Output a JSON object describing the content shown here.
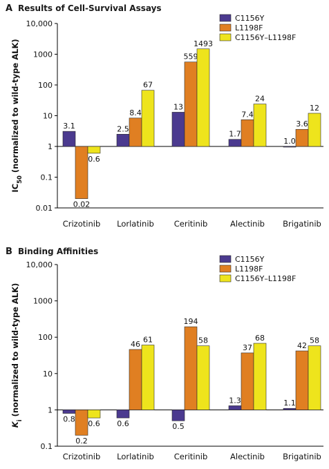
{
  "colors": {
    "C1156Y": "#4b3a8f",
    "L1198F": "#e07f22",
    "C1156Y-L1198F": "#eee41c"
  },
  "chart_data": [
    {
      "panel": "A",
      "title": "Results of Cell-Survival Assays",
      "type": "bar",
      "scale": "log",
      "ylabel_pre": "IC",
      "ylabel_sub": "50",
      "ylabel_post": " (normalized to wild-type ALK)",
      "ylim": [
        0.01,
        10000
      ],
      "yticks": [
        "10,000",
        "1000",
        "100",
        "10",
        "1",
        "0.1",
        "0.01"
      ],
      "legend_position": "top-right",
      "categories": [
        "Crizotinib",
        "Lorlatinib",
        "Ceritinib",
        "Alectinib",
        "Brigatinib"
      ],
      "series": [
        {
          "name": "C1156Y",
          "values": [
            3.1,
            2.5,
            13,
            1.7,
            1.0
          ],
          "labels": [
            "3.1",
            "2.5",
            "13",
            "1.7",
            "1.0"
          ]
        },
        {
          "name": "L1198F",
          "values": [
            0.02,
            8.4,
            559,
            7.4,
            3.6
          ],
          "labels": [
            "0.02",
            "8.4",
            "559",
            "7.4",
            "3.6"
          ]
        },
        {
          "name": "C1156Y–L1198F",
          "values": [
            0.6,
            67,
            1493,
            24,
            12
          ],
          "labels": [
            "0.6",
            "67",
            "1493",
            "24",
            "12"
          ]
        }
      ]
    },
    {
      "panel": "B",
      "title": "Binding Affinities",
      "type": "bar",
      "scale": "log",
      "ylabel_pre": "K",
      "ylabel_sub": "i",
      "ylabel_post": " (normalized to wild-type ALK)",
      "ylim": [
        0.1,
        10000
      ],
      "yticks": [
        "10,000",
        "1000",
        "100",
        "10",
        "1",
        "0.1"
      ],
      "legend_position": "top-right",
      "categories": [
        "Crizotinib",
        "Lorlatinib",
        "Ceritinib",
        "Alectinib",
        "Brigatinib"
      ],
      "series": [
        {
          "name": "C1156Y",
          "values": [
            0.8,
            0.6,
            0.5,
            1.3,
            1.1
          ],
          "labels": [
            "0.8",
            "0.6",
            "0.5",
            "1.3",
            "1.1"
          ]
        },
        {
          "name": "L1198F",
          "values": [
            0.2,
            46,
            194,
            37,
            42
          ],
          "labels": [
            "0.2",
            "46",
            "194",
            "37",
            "42"
          ]
        },
        {
          "name": "C1156Y–L1198F",
          "values": [
            0.6,
            61,
            58,
            68,
            58
          ],
          "labels": [
            "0.6",
            "61",
            "58",
            "68",
            "58"
          ]
        }
      ]
    }
  ]
}
